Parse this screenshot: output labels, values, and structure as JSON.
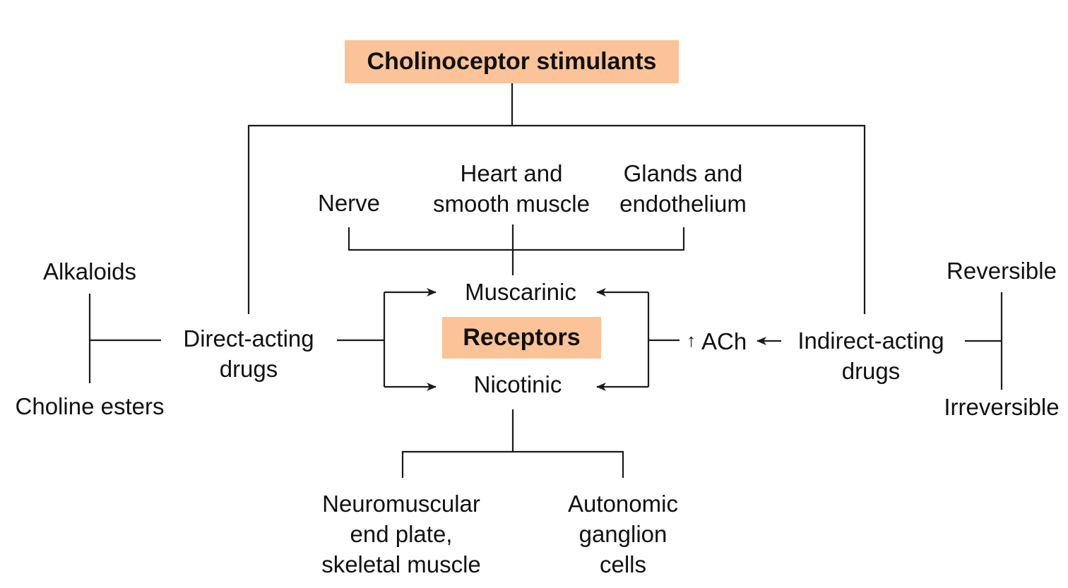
{
  "diagram": {
    "title": "Cholinoceptor stimulants",
    "center_label": "Receptors",
    "direct": {
      "line1": "Direct-acting",
      "line2": "drugs"
    },
    "indirect": {
      "line1": "Indirect-acting",
      "line2": "drugs"
    },
    "direct_types": {
      "alkaloids": "Alkaloids",
      "choline_esters": "Choline esters"
    },
    "indirect_types": {
      "reversible": "Reversible",
      "irreversible": "Irreversible"
    },
    "receptors": {
      "muscarinic": "Muscarinic",
      "nicotinic": "Nicotinic"
    },
    "muscarinic_sites": {
      "nerve": "Nerve",
      "heart_line1": "Heart and",
      "heart_line2": "smooth muscle",
      "glands_line1": "Glands and",
      "glands_line2": "endothelium"
    },
    "nicotinic_sites": {
      "nm_line1": "Neuromuscular",
      "nm_line2": "end plate,",
      "nm_line3": "skeletal muscle",
      "ag_line1": "Autonomic",
      "ag_line2": "ganglion",
      "ag_line3": "cells"
    },
    "ach": {
      "arrow_up": "↑",
      "label": "ACh"
    },
    "colors": {
      "box_fill": "#fbc397",
      "line": "#1a1a1a"
    }
  }
}
